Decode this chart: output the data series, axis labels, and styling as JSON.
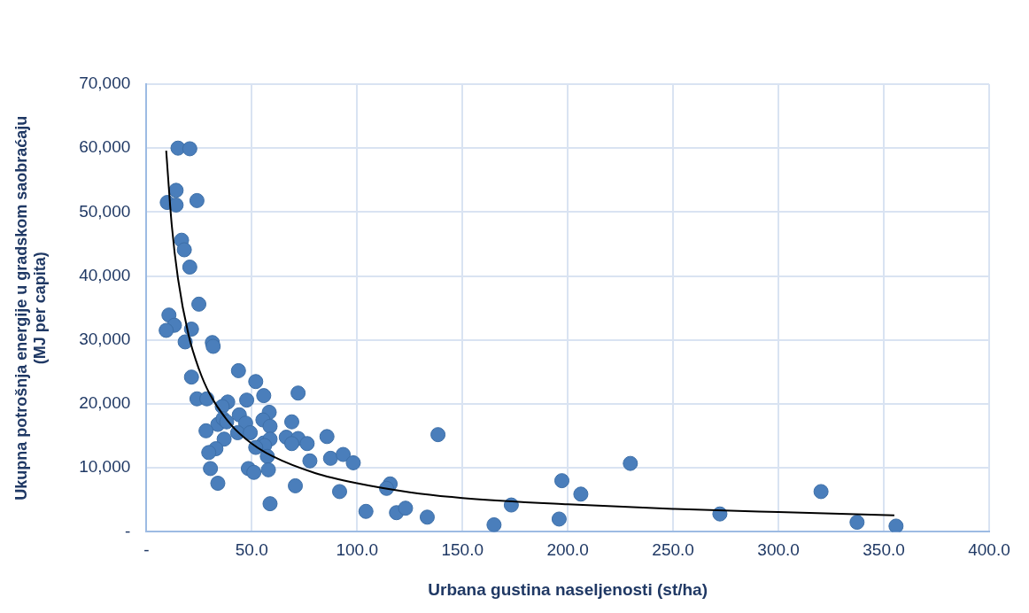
{
  "chart_data": {
    "type": "scatter",
    "xlabel": "Urbana gustina naseljenosti (st/ha)",
    "ylabel": "Ukupna potrošnja energije u gradskom saobraćaju\n(MJ per capita)",
    "xlim": [
      0,
      400
    ],
    "xticks": [
      {
        "value": 0,
        "label": "-"
      },
      {
        "value": 50,
        "label": "50.0"
      },
      {
        "value": 100,
        "label": "100.0"
      },
      {
        "value": 150,
        "label": "150.0"
      },
      {
        "value": 200,
        "label": "200.0"
      },
      {
        "value": 250,
        "label": "250.0"
      },
      {
        "value": 300,
        "label": "300.0"
      },
      {
        "value": 350,
        "label": "350.0"
      },
      {
        "value": 400,
        "label": "400.0"
      }
    ],
    "ylim": [
      0,
      70000
    ],
    "yticks": [
      {
        "value": 0,
        "label": "-"
      },
      {
        "value": 10000,
        "label": "10,000"
      },
      {
        "value": 20000,
        "label": "20,000"
      },
      {
        "value": 30000,
        "label": "30,000"
      },
      {
        "value": 40000,
        "label": "40,000"
      },
      {
        "value": 50000,
        "label": "50,000"
      },
      {
        "value": 60000,
        "label": "60,000"
      },
      {
        "value": 70000,
        "label": "70,000"
      }
    ],
    "grid": true,
    "legend": false,
    "series": [
      {
        "type": "scatter",
        "color": "#4a7ebb",
        "marker": "circle",
        "x": [
          15.0,
          20.6,
          9.9,
          14.1,
          14.1,
          24.0,
          16.7,
          18.0,
          20.6,
          24.9,
          10.7,
          13.3,
          9.4,
          21.4,
          18.4,
          31.3,
          31.7,
          21.4,
          43.7,
          51.9,
          72.0,
          24.0,
          28.7,
          47.6,
          55.7,
          38.6,
          36.0,
          58.3,
          44.1,
          69.0,
          47.1,
          55.3,
          58.7,
          33.9,
          36.4,
          38.1,
          28.3,
          43.3,
          49.3,
          36.9,
          66.4,
          72.0,
          69.0,
          76.3,
          85.7,
          55.7,
          58.7,
          56.1,
          51.9,
          57.4,
          33.0,
          29.6,
          77.6,
          87.4,
          93.4,
          98.2,
          30.4,
          48.4,
          51.0,
          57.9,
          33.9,
          70.7,
          91.7,
          58.7,
          104.2,
          138.4,
          115.7,
          114.0,
          118.7,
          123.0,
          133.3,
          165.0,
          173.2,
          197.2,
          195.9,
          206.2,
          229.7,
          272.2,
          320.2,
          337.3,
          355.8
        ],
        "values": [
          60000,
          59900,
          51500,
          53400,
          51100,
          51800,
          45600,
          44100,
          41400,
          35600,
          33900,
          32300,
          31500,
          31700,
          29700,
          29600,
          29000,
          24200,
          25200,
          23500,
          21700,
          20800,
          20800,
          20600,
          21300,
          20300,
          19600,
          18700,
          18300,
          17200,
          17000,
          17500,
          16500,
          16800,
          17700,
          17200,
          15800,
          15500,
          15500,
          14500,
          14800,
          14600,
          13800,
          13800,
          14900,
          13900,
          14500,
          13500,
          13200,
          11800,
          13000,
          12400,
          11100,
          11500,
          12100,
          10800,
          9900,
          9900,
          9300,
          9700,
          7600,
          7200,
          6300,
          4400,
          3200,
          15200,
          7500,
          6800,
          3000,
          3700,
          2300,
          1100,
          4200,
          8000,
          2000,
          5900,
          10700,
          2800,
          6300,
          1500,
          900
        ]
      },
      {
        "type": "line",
        "color": "#000000",
        "marker": "none",
        "line_style": "solid",
        "x": [
          9.4,
          12,
          15,
          20,
          25,
          30,
          40,
          50,
          60,
          80,
          100,
          125,
          150,
          200,
          250,
          300,
          355
        ],
        "values": [
          59600,
          48100,
          39600,
          30800,
          25400,
          21600,
          16800,
          13800,
          11800,
          9200,
          7600,
          6200,
          5300,
          4300,
          3600,
          3100,
          2600
        ]
      }
    ]
  }
}
